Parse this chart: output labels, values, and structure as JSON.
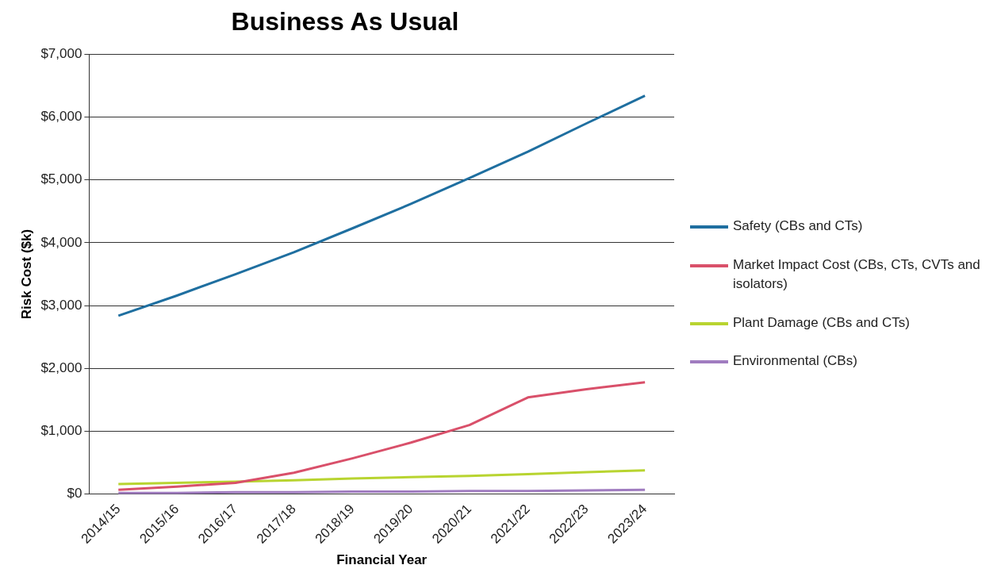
{
  "chart_data": {
    "type": "line",
    "title": "Business As Usual",
    "xlabel": "Financial Year",
    "ylabel": "Risk Cost ($k)",
    "categories": [
      "2014/15",
      "2015/16",
      "2016/17",
      "2017/18",
      "2018/19",
      "2019/20",
      "2020/21",
      "2021/22",
      "2022/23",
      "2023/24"
    ],
    "series": [
      {
        "name": "Safety (CBs and CTs)",
        "color": "#1f6fa0",
        "values": [
          2840,
          3160,
          3500,
          3850,
          4230,
          4620,
          5030,
          5450,
          5900,
          6340
        ]
      },
      {
        "name": "Market Impact Cost (CBs, CTs, CVTs and isolators)",
        "color": "#d9506a",
        "values": [
          70,
          120,
          180,
          340,
          570,
          820,
          1100,
          1540,
          1670,
          1780
        ]
      },
      {
        "name": "Plant Damage (CBs and CTs)",
        "color": "#b8d430",
        "values": [
          160,
          180,
          200,
          220,
          250,
          270,
          290,
          320,
          350,
          380
        ]
      },
      {
        "name": "Environmental (CBs)",
        "color": "#a07cc0",
        "values": [
          20,
          20,
          30,
          30,
          40,
          40,
          50,
          50,
          60,
          70
        ]
      }
    ],
    "ylim": [
      0,
      7000
    ],
    "yticks": [
      {
        "value": 0,
        "label": "$0"
      },
      {
        "value": 1000,
        "label": "$1,000"
      },
      {
        "value": 2000,
        "label": "$2,000"
      },
      {
        "value": 3000,
        "label": "$3,000"
      },
      {
        "value": 4000,
        "label": "$4,000"
      },
      {
        "value": 5000,
        "label": "$5,000"
      },
      {
        "value": 6000,
        "label": "$6,000"
      },
      {
        "value": 7000,
        "label": "$7,000"
      }
    ],
    "grid": "y",
    "legend": "right",
    "marker": "none",
    "line_style": "solid"
  }
}
